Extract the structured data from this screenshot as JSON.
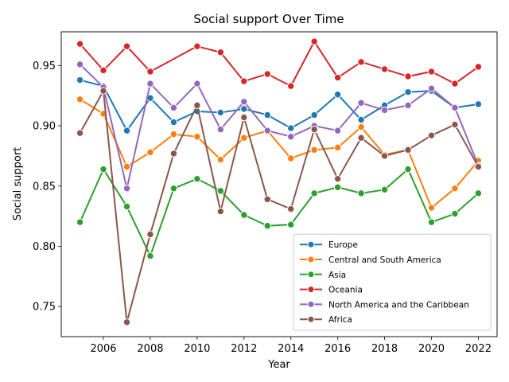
{
  "chart_data": {
    "type": "line",
    "title": "Social support Over Time",
    "xlabel": "Year",
    "ylabel": "Social support",
    "xlim": [
      2004.2,
      2022.8
    ],
    "ylim": [
      0.725,
      0.978
    ],
    "x": [
      2005,
      2006,
      2007,
      2008,
      2009,
      2010,
      2011,
      2012,
      2013,
      2014,
      2015,
      2016,
      2017,
      2018,
      2019,
      2020,
      2021,
      2022
    ],
    "xticks": [
      2006,
      2008,
      2010,
      2012,
      2014,
      2016,
      2018,
      2020,
      2022
    ],
    "yticks": [
      0.75,
      0.8,
      0.85,
      0.9,
      0.95
    ],
    "ytick_labels": [
      "0.75",
      "0.80",
      "0.85",
      "0.90",
      "0.95"
    ],
    "grid": false,
    "legend_position": "lower-right",
    "series": [
      {
        "name": "Europe",
        "color": "#1f77b4",
        "values": [
          0.938,
          0.933,
          0.896,
          0.923,
          0.903,
          0.912,
          0.911,
          0.914,
          0.909,
          0.898,
          0.909,
          0.926,
          0.905,
          0.917,
          0.928,
          0.929,
          0.915,
          0.918
        ]
      },
      {
        "name": "Central and South America",
        "color": "#ff7f0e",
        "values": [
          0.922,
          0.91,
          0.866,
          0.878,
          0.893,
          0.891,
          0.872,
          0.89,
          0.896,
          0.873,
          0.88,
          0.882,
          0.899,
          0.876,
          0.88,
          0.832,
          0.848,
          0.871
        ]
      },
      {
        "name": "Asia",
        "color": "#2ca02c",
        "values": [
          0.82,
          0.864,
          0.833,
          0.792,
          0.848,
          0.856,
          0.846,
          0.826,
          0.817,
          0.818,
          0.844,
          0.849,
          0.844,
          0.847,
          0.864,
          0.82,
          0.827,
          0.844
        ]
      },
      {
        "name": "Oceania",
        "color": "#d62728",
        "values": [
          0.968,
          0.946,
          0.966,
          0.945,
          null,
          0.966,
          0.961,
          0.937,
          0.943,
          0.933,
          0.97,
          0.94,
          0.953,
          0.947,
          0.941,
          0.945,
          0.935,
          0.949
        ]
      },
      {
        "name": "North America and the Caribbean",
        "color": "#9467bd",
        "values": [
          0.951,
          0.932,
          0.848,
          0.935,
          0.915,
          0.935,
          0.897,
          0.92,
          0.896,
          0.891,
          0.9,
          0.896,
          0.919,
          0.913,
          0.917,
          0.931,
          0.915,
          0.867
        ]
      },
      {
        "name": "Africa",
        "color": "#8c564b",
        "values": [
          0.894,
          0.929,
          0.737,
          0.81,
          0.877,
          0.917,
          0.829,
          0.907,
          0.839,
          0.831,
          0.897,
          0.856,
          0.89,
          0.875,
          0.88,
          0.892,
          0.901,
          0.866
        ]
      }
    ]
  }
}
